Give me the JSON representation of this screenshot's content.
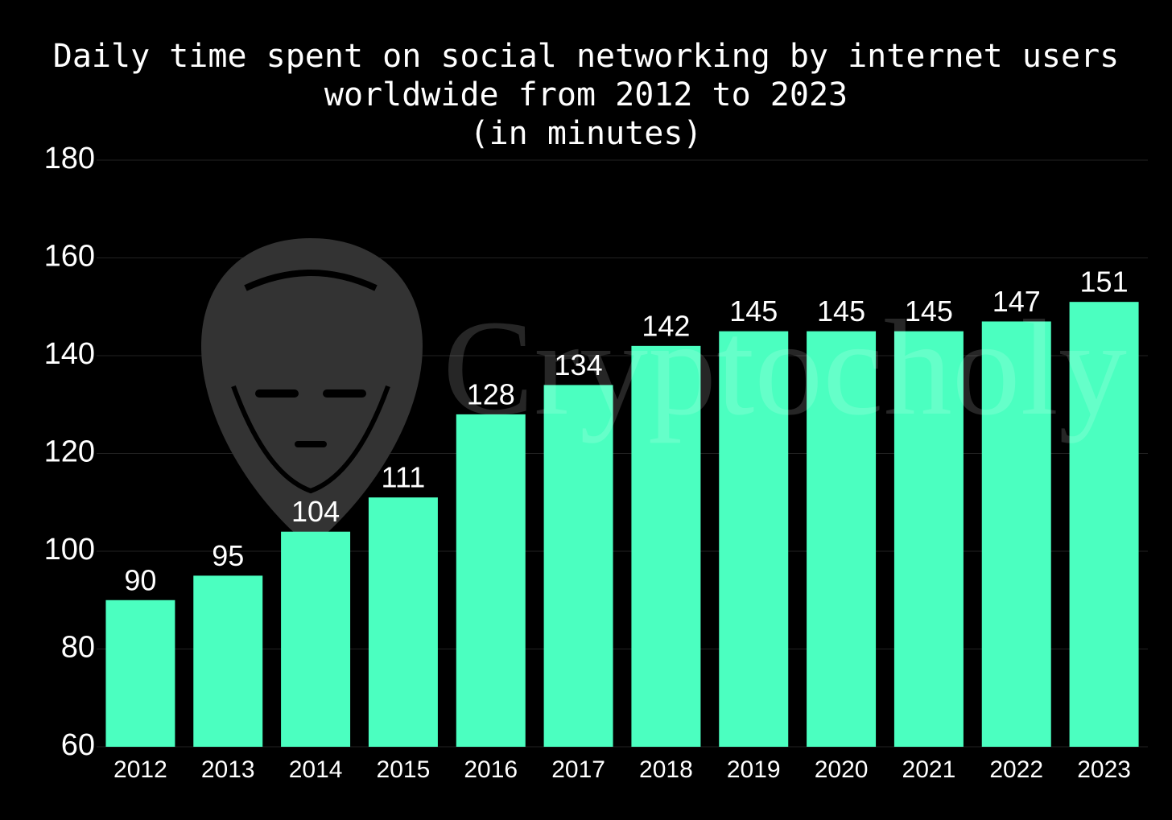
{
  "chart_data": {
    "type": "bar",
    "title": [
      "Daily time spent on social networking by internet users",
      "worldwide from 2012 to 2023"
    ],
    "subtitle": "(in minutes)",
    "watermark": "Cryptocholy",
    "categories": [
      "2012",
      "2013",
      "2014",
      "2015",
      "2016",
      "2017",
      "2018",
      "2019",
      "2020",
      "2021",
      "2022",
      "2023"
    ],
    "values": [
      90,
      95,
      104,
      111,
      128,
      134,
      142,
      145,
      145,
      145,
      147,
      151
    ],
    "color": "#4bffc0",
    "ylim": [
      60,
      180
    ],
    "yticks": [
      60,
      80,
      100,
      120,
      140,
      160,
      180
    ],
    "grid": true
  }
}
